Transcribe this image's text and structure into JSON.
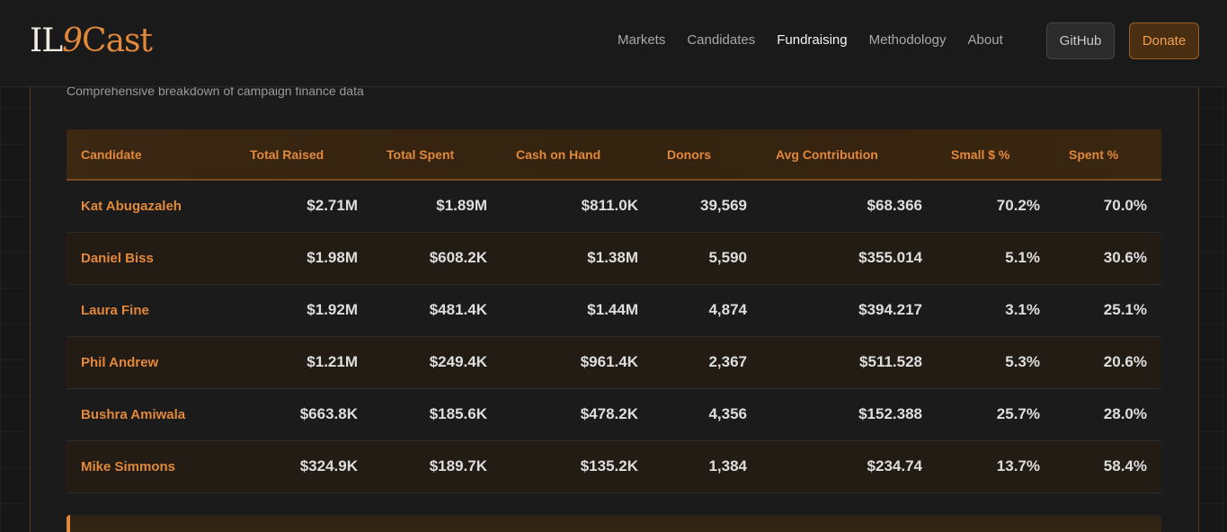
{
  "logo": {
    "part1": "IL",
    "part2": "9",
    "part3": "Cast"
  },
  "nav": {
    "links": [
      {
        "label": "Markets",
        "active": false
      },
      {
        "label": "Candidates",
        "active": false
      },
      {
        "label": "Fundraising",
        "active": true
      },
      {
        "label": "Methodology",
        "active": false
      },
      {
        "label": "About",
        "active": false
      }
    ],
    "github_label": "GitHub",
    "donate_label": "Donate"
  },
  "section": {
    "subtitle": "Comprehensive breakdown of campaign finance data"
  },
  "table": {
    "headers": [
      "Candidate",
      "Total Raised",
      "Total Spent",
      "Cash on Hand",
      "Donors",
      "Avg Contribution",
      "Small $ %",
      "Spent %"
    ],
    "rows": [
      [
        "Kat Abugazaleh",
        "$2.71M",
        "$1.89M",
        "$811.0K",
        "39,569",
        "$68.366",
        "70.2%",
        "70.0%"
      ],
      [
        "Daniel Biss",
        "$1.98M",
        "$608.2K",
        "$1.38M",
        "5,590",
        "$355.014",
        "5.1%",
        "30.6%"
      ],
      [
        "Laura Fine",
        "$1.92M",
        "$481.4K",
        "$1.44M",
        "4,874",
        "$394.217",
        "3.1%",
        "25.1%"
      ],
      [
        "Phil Andrew",
        "$1.21M",
        "$249.4K",
        "$961.4K",
        "2,367",
        "$511.528",
        "5.3%",
        "20.6%"
      ],
      [
        "Bushra Amiwala",
        "$663.8K",
        "$185.6K",
        "$478.2K",
        "4,356",
        "$152.388",
        "25.7%",
        "28.0%"
      ],
      [
        "Mike Simmons",
        "$324.9K",
        "$189.7K",
        "$135.2K",
        "1,384",
        "$234.74",
        "13.7%",
        "58.4%"
      ]
    ]
  },
  "colors": {
    "accent": "#e2883a",
    "background": "#171717",
    "text": "#dedede"
  }
}
